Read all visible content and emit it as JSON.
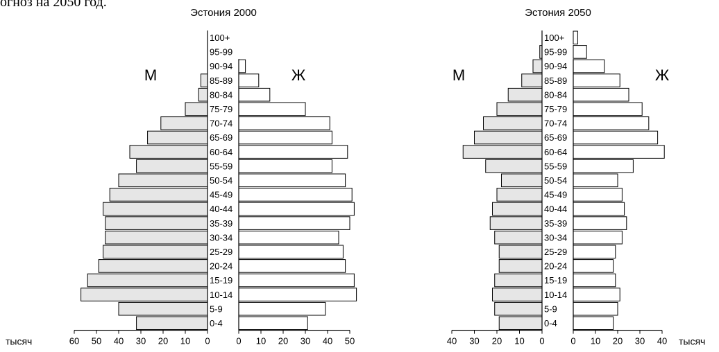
{
  "page": {
    "top_text": "огноз на 2050 год."
  },
  "unit_label": "тысяч",
  "colors": {
    "male_fill": "#e6e6e6",
    "female_fill": "#ffffff",
    "stroke": "#000000"
  },
  "chart_data": [
    {
      "type": "bar",
      "title": "Эстония 2000",
      "male_label": "М",
      "female_label": "Ж",
      "categories": [
        "100+",
        "95-99",
        "90-94",
        "85-89",
        "80-84",
        "75-79",
        "70-74",
        "65-69",
        "60-64",
        "55-59",
        "50-54",
        "45-49",
        "40-44",
        "35-39",
        "30-34",
        "25-29",
        "20-24",
        "15-19",
        "10-14",
        "5-9",
        "0-4"
      ],
      "series": [
        {
          "values": [
            0,
            0,
            0,
            3,
            4,
            10,
            21,
            27,
            35,
            32,
            40,
            44,
            47,
            46,
            46,
            47,
            49,
            54,
            57,
            40,
            32
          ]
        },
        {
          "values": [
            0,
            0,
            3,
            9,
            14,
            30,
            41,
            42,
            49,
            42,
            48,
            51,
            52,
            50,
            45,
            47,
            48,
            52,
            53,
            39,
            31
          ]
        }
      ],
      "male_ticks": [
        60,
        50,
        40,
        30,
        20,
        10,
        0
      ],
      "female_ticks": [
        0,
        10,
        20,
        30,
        40,
        50
      ],
      "male_max": 60,
      "female_max": 50
    },
    {
      "type": "bar",
      "title": "Эстония 2050",
      "male_label": "М",
      "female_label": "Ж",
      "categories": [
        "100+",
        "95-99",
        "90-94",
        "85-89",
        "80-84",
        "75-79",
        "70-74",
        "65-69",
        "60-64",
        "55-59",
        "50-54",
        "45-49",
        "40-44",
        "35-39",
        "30-34",
        "25-29",
        "20-24",
        "15-19",
        "10-14",
        "5-9",
        "0-4"
      ],
      "series": [
        {
          "values": [
            0,
            1,
            4,
            9,
            15,
            20,
            26,
            30,
            35,
            25,
            18,
            20,
            22,
            23,
            21,
            19,
            19,
            21,
            22,
            21,
            19
          ]
        },
        {
          "values": [
            2,
            6,
            14,
            21,
            25,
            31,
            34,
            38,
            41,
            27,
            20,
            22,
            23,
            24,
            22,
            19,
            18,
            19,
            21,
            20,
            18
          ]
        }
      ],
      "male_ticks": [
        40,
        30,
        20,
        10,
        0
      ],
      "female_ticks": [
        0,
        10,
        20,
        30,
        40
      ],
      "male_max": 40,
      "female_max": 40
    }
  ]
}
